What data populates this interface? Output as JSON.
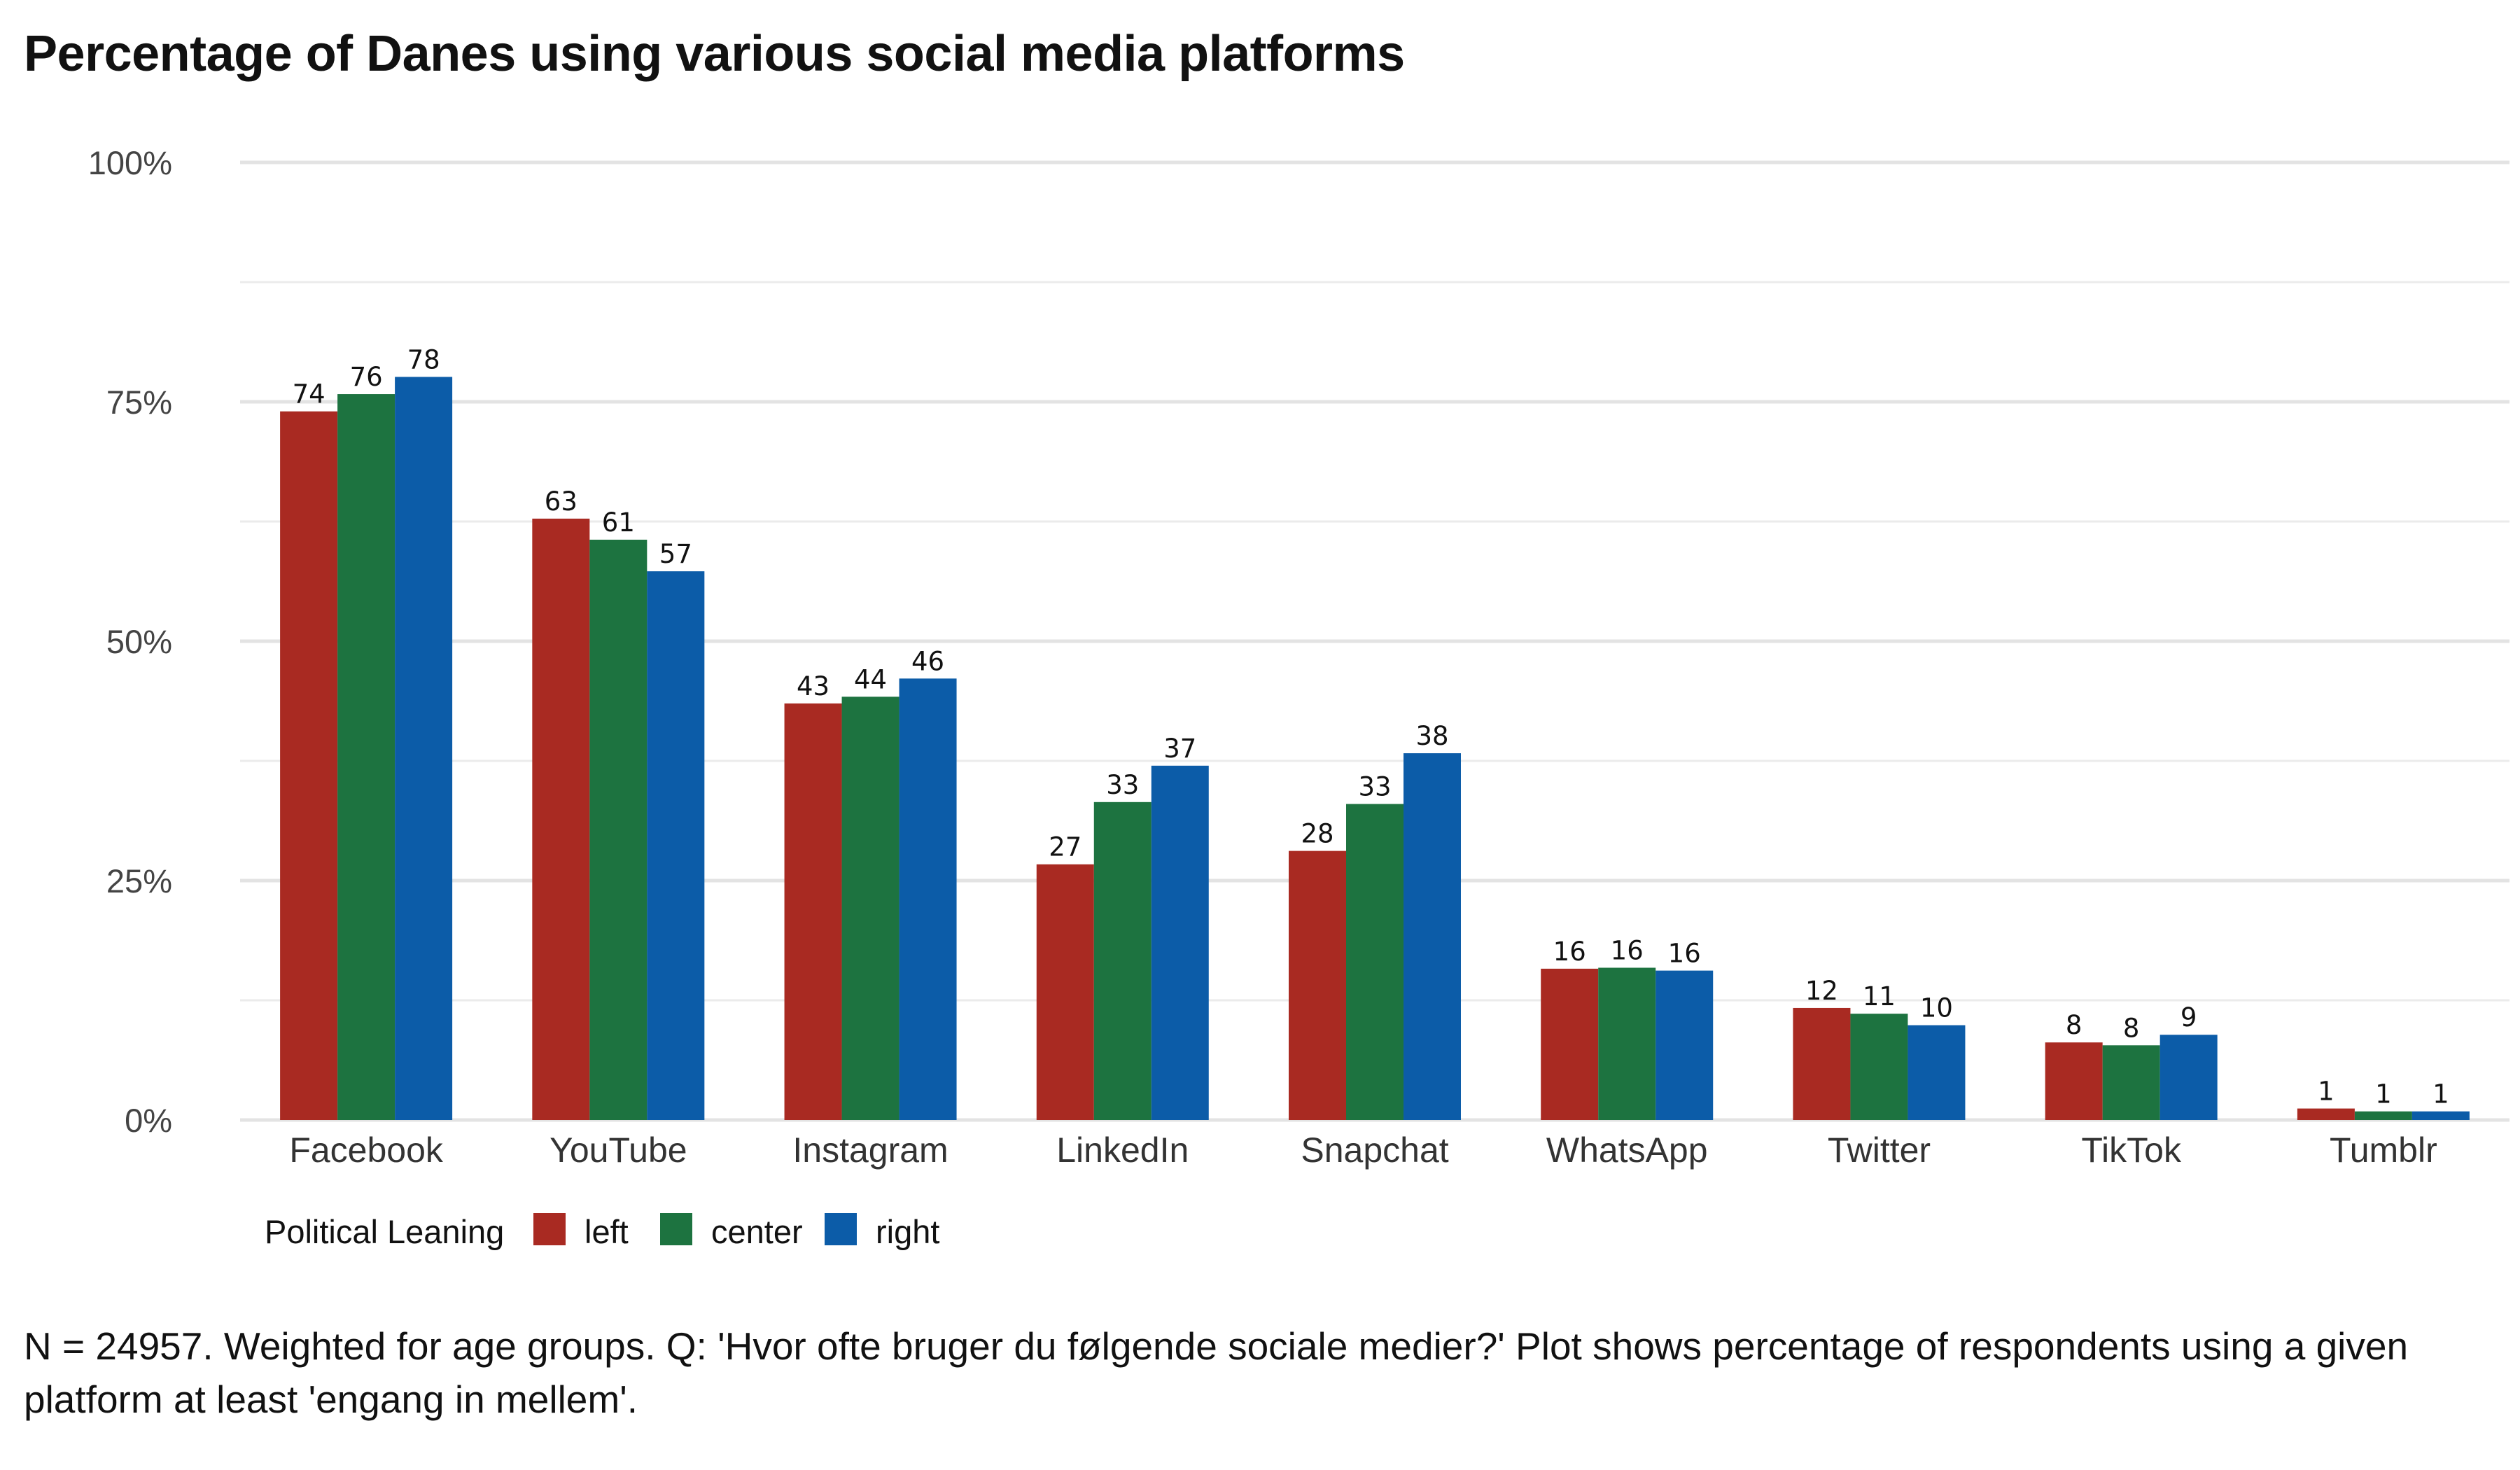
{
  "chart_data": {
    "type": "bar",
    "title": "Percentage of Danes using various social media platforms",
    "xlabel": "",
    "ylabel": "",
    "ylim": [
      0,
      100
    ],
    "yticks": [
      0,
      25,
      50,
      75,
      100
    ],
    "ytick_labels": [
      "0%",
      "25%",
      "50%",
      "75%",
      "100%"
    ],
    "grid": true,
    "categories": [
      "Facebook",
      "YouTube",
      "Instagram",
      "LinkedIn",
      "Snapchat",
      "WhatsApp",
      "Twitter",
      "TikTok",
      "Tumblr"
    ],
    "series": [
      {
        "name": "left",
        "color": "#a92a22",
        "values": [
          74,
          63,
          43,
          27,
          28,
          16,
          12,
          8,
          1
        ],
        "plot_values": [
          74,
          62.8,
          43.5,
          26.7,
          28.1,
          15.8,
          11.7,
          8.1,
          1.2
        ]
      },
      {
        "name": "center",
        "color": "#1d7340",
        "values": [
          76,
          61,
          44,
          33,
          33,
          16,
          11,
          8,
          1
        ],
        "plot_values": [
          75.8,
          60.6,
          44.2,
          33.2,
          33,
          15.9,
          11.1,
          7.8,
          0.9
        ]
      },
      {
        "name": "right",
        "color": "#0c5ca8",
        "values": [
          78,
          57,
          46,
          37,
          38,
          16,
          10,
          9,
          1
        ],
        "plot_values": [
          77.6,
          57.3,
          46.1,
          37,
          38.3,
          15.6,
          9.9,
          8.9,
          0.9
        ]
      }
    ],
    "legend": {
      "title": "Political Leaning",
      "position": "bottom-left"
    },
    "caption": "N = 24957. Weighted for age groups. Q: 'Hvor ofte bruger du følgende sociale medier?' Plot shows percentage of respondents using a given platform at least 'engang in mellem'."
  }
}
